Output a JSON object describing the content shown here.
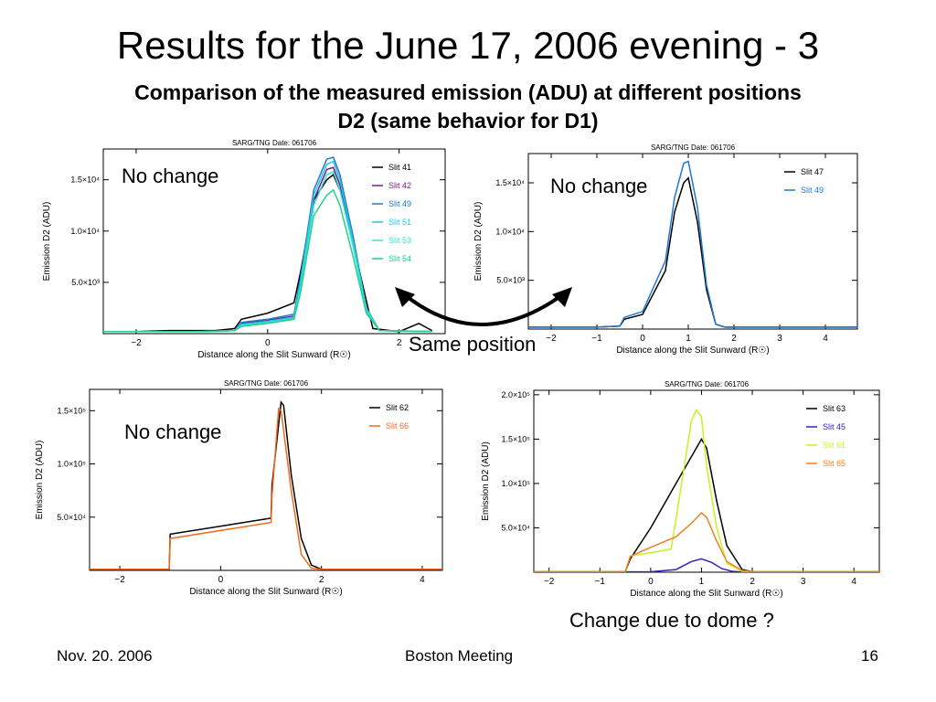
{
  "slide": {
    "title": "Results for the June 17, 2006 evening - 3",
    "subtitle_line1": "Comparison of the measured emission (ADU) at different positions",
    "subtitle_line2": "D2 (same behavior for D1)"
  },
  "callouts": {
    "top_left": "No change",
    "top_right": "No change",
    "bottom_left": "No change",
    "same_position": "Same position",
    "bottom_right": "Change due to dome ?"
  },
  "footer": {
    "date": "Nov. 20. 2006",
    "event": "Boston Meeting",
    "page": "16"
  },
  "colors": {
    "arrow": "#000000"
  },
  "chart_data": [
    {
      "type": "line",
      "title": "SARG/TNG Date: 061706",
      "xlabel": "Distance along the Slit Sunward (R☉)",
      "ylabel": "Emission D2 (ADU)",
      "xlim": [
        -2.5,
        2.7
      ],
      "ylim": [
        0,
        18000
      ],
      "xticks": [
        -2,
        0,
        2
      ],
      "yticks": [
        5000,
        10000,
        15000
      ],
      "ytick_labels": [
        "5.0×10³",
        "1.0×10⁴",
        "1.5×10⁴"
      ],
      "legend": "top-right",
      "series": [
        {
          "name": "Slit 41",
          "color": "#000000",
          "x": [
            -2.5,
            -2,
            -1.5,
            -1,
            -0.8,
            -0.5,
            -0.4,
            0,
            0.4,
            0.5,
            0.7,
            0.9,
            1.0,
            1.1,
            1.2,
            1.4,
            1.6,
            2,
            2.3,
            2.5
          ],
          "y": [
            200,
            200,
            300,
            300,
            300,
            500,
            1400,
            2000,
            3000,
            6000,
            13000,
            15000,
            15500,
            14000,
            12000,
            6000,
            500,
            200,
            1000,
            300
          ]
        },
        {
          "name": "Slit 42",
          "color": "#7a1d86",
          "x": [
            -2.5,
            -1,
            -0.5,
            -0.4,
            0,
            0.4,
            0.5,
            0.7,
            0.9,
            1.0,
            1.1,
            1.3,
            1.5,
            1.7,
            2.5
          ],
          "y": [
            200,
            200,
            300,
            1000,
            1300,
            1700,
            5000,
            13000,
            16000,
            16200,
            14500,
            9000,
            2500,
            300,
            200
          ]
        },
        {
          "name": "Slit 49",
          "color": "#1f78d1",
          "x": [
            -2.5,
            -1,
            -0.5,
            -0.4,
            0,
            0.4,
            0.5,
            0.7,
            0.9,
            1.0,
            1.1,
            1.3,
            1.5,
            1.7,
            2.5
          ],
          "y": [
            200,
            200,
            300,
            1100,
            1400,
            1900,
            5500,
            14000,
            17000,
            17200,
            15500,
            9500,
            2500,
            300,
            200
          ]
        },
        {
          "name": "Slit 51",
          "color": "#27c4e8",
          "x": [
            -2.5,
            -1,
            -0.5,
            -0.4,
            0,
            0.4,
            0.5,
            0.7,
            0.9,
            1.0,
            1.1,
            1.3,
            1.5,
            1.7,
            2.5
          ],
          "y": [
            200,
            200,
            300,
            900,
            1200,
            1600,
            5000,
            13500,
            16500,
            16800,
            15000,
            9000,
            2500,
            300,
            200
          ]
        },
        {
          "name": "Slit 53",
          "color": "#30e6c8",
          "x": [
            -2.5,
            -1,
            -0.5,
            -0.4,
            0,
            0.4,
            0.5,
            0.7,
            0.9,
            1.0,
            1.1,
            1.3,
            1.5,
            1.7,
            2.5
          ],
          "y": [
            200,
            200,
            300,
            800,
            1100,
            1500,
            4500,
            12500,
            15500,
            15800,
            14000,
            8500,
            2200,
            300,
            200
          ]
        },
        {
          "name": "Slit 54",
          "color": "#22d08a",
          "x": [
            -2.5,
            -1,
            -0.5,
            -0.4,
            0,
            0.4,
            0.5,
            0.7,
            0.9,
            1.0,
            1.1,
            1.3,
            1.5,
            1.7,
            2.5
          ],
          "y": [
            200,
            200,
            300,
            700,
            1000,
            1400,
            4000,
            11500,
            13500,
            14000,
            12500,
            7500,
            2000,
            300,
            200
          ]
        }
      ]
    },
    {
      "type": "line",
      "title": "SARG/TNG Date: 061706",
      "xlabel": "Distance along the Slit Sunward (R☉)",
      "ylabel": "Emission D2 (ADU)",
      "xlim": [
        -2.5,
        4.7
      ],
      "ylim": [
        0,
        18000
      ],
      "xticks": [
        -2,
        -1,
        0,
        1,
        2,
        3,
        4
      ],
      "yticks": [
        5000,
        10000,
        15000
      ],
      "ytick_labels": [
        "5.0×10³",
        "1.0×10⁴",
        "1.5×10⁴"
      ],
      "legend": "top-right",
      "series": [
        {
          "name": "Slit 47",
          "color": "#000000",
          "x": [
            -2.5,
            -1,
            -0.5,
            -0.4,
            0,
            0.5,
            0.7,
            0.9,
            1.0,
            1.2,
            1.4,
            1.6,
            1.8,
            2.5,
            4.7
          ],
          "y": [
            200,
            200,
            300,
            1000,
            1500,
            6000,
            12000,
            15000,
            15500,
            11000,
            4000,
            500,
            200,
            200,
            200
          ]
        },
        {
          "name": "Slit 49",
          "color": "#1f78d1",
          "x": [
            -2.5,
            -1,
            -0.5,
            -0.4,
            0,
            0.5,
            0.7,
            0.9,
            1.0,
            1.2,
            1.4,
            1.6,
            1.8,
            2.5,
            4.7
          ],
          "y": [
            200,
            200,
            300,
            1200,
            1800,
            7000,
            13500,
            17000,
            17200,
            12500,
            4500,
            500,
            200,
            200,
            200
          ]
        }
      ]
    },
    {
      "type": "line",
      "title": "SARG/TNG Date: 061706",
      "xlabel": "Distance along the Slit Sunward (R☉)",
      "ylabel": "Emission D2 (ADU)",
      "xlim": [
        -2.6,
        4.4
      ],
      "ylim": [
        0,
        170000
      ],
      "xticks": [
        -2,
        0,
        2,
        4
      ],
      "yticks": [
        50000,
        100000,
        150000
      ],
      "ytick_labels": [
        "5.0×10⁴",
        "1.0×10⁵",
        "1.5×10⁵"
      ],
      "legend": "top-right",
      "series": [
        {
          "name": "Slit 62",
          "color": "#000000",
          "x": [
            -2.6,
            -1.02,
            -1.0,
            1.0,
            1.02,
            1.2,
            1.25,
            1.4,
            1.6,
            1.8,
            2.0,
            4.4
          ],
          "y": [
            1000,
            1000,
            34000,
            49000,
            80000,
            158000,
            155000,
            90000,
            30000,
            5000,
            1000,
            1000
          ]
        },
        {
          "name": "Slit 66",
          "color": "#f26a1b",
          "x": [
            -2.6,
            -1.02,
            -1.0,
            1.0,
            1.02,
            1.15,
            1.2,
            1.4,
            1.6,
            1.8,
            2.0,
            4.4
          ],
          "y": [
            1000,
            1000,
            30000,
            45000,
            70000,
            152000,
            150000,
            75000,
            15000,
            2000,
            1000,
            1000
          ]
        }
      ]
    },
    {
      "type": "line",
      "title": "SARG/TNG Date: 061706",
      "xlabel": "Distance along the Slit Sunward (R☉)",
      "ylabel": "Emission D2 (ADU)",
      "xlim": [
        -2.3,
        4.5
      ],
      "ylim": [
        0,
        205000
      ],
      "xticks": [
        -2,
        -1,
        0,
        1,
        2,
        3,
        4
      ],
      "yticks": [
        50000,
        100000,
        150000,
        200000
      ],
      "ytick_labels": [
        "5.0×10⁴",
        "1.0×10⁵",
        "1.5×10⁵",
        "2.0×10⁵"
      ],
      "legend": "top-right",
      "series": [
        {
          "name": "Slit 63",
          "color": "#000000",
          "x": [
            -2.3,
            -1,
            -0.5,
            -0.4,
            0,
            0.5,
            1.0,
            1.1,
            1.3,
            1.5,
            1.8,
            2.0,
            4.5
          ],
          "y": [
            500,
            500,
            800,
            15000,
            50000,
            100000,
            150000,
            140000,
            80000,
            30000,
            3000,
            500,
            500
          ]
        },
        {
          "name": "Slit 45",
          "color": "#3a22c0",
          "x": [
            -2.3,
            -1,
            0,
            0.5,
            0.8,
            1.0,
            1.2,
            1.4,
            1.6,
            1.8,
            4.5
          ],
          "y": [
            300,
            300,
            500,
            3000,
            12000,
            15000,
            11000,
            4000,
            1000,
            300,
            300
          ]
        },
        {
          "name": "Slit 61",
          "color": "#c9f21f",
          "x": [
            -2.3,
            -1,
            -0.5,
            -0.4,
            0,
            0.4,
            0.5,
            0.8,
            0.9,
            1.0,
            1.1,
            1.3,
            1.5,
            1.8,
            2.0,
            4.5
          ],
          "y": [
            500,
            500,
            800,
            18000,
            22000,
            26000,
            60000,
            170000,
            183000,
            175000,
            120000,
            50000,
            10000,
            1000,
            500,
            500
          ]
        },
        {
          "name": "Slit 65",
          "color": "#f08024",
          "x": [
            -2.3,
            -1,
            -0.5,
            -0.4,
            0,
            0.5,
            0.8,
            1.0,
            1.1,
            1.3,
            1.5,
            1.8,
            2.0,
            4.5
          ],
          "y": [
            500,
            500,
            800,
            18000,
            28000,
            40000,
            55000,
            67000,
            62000,
            35000,
            12000,
            2000,
            500,
            500
          ]
        }
      ]
    }
  ]
}
